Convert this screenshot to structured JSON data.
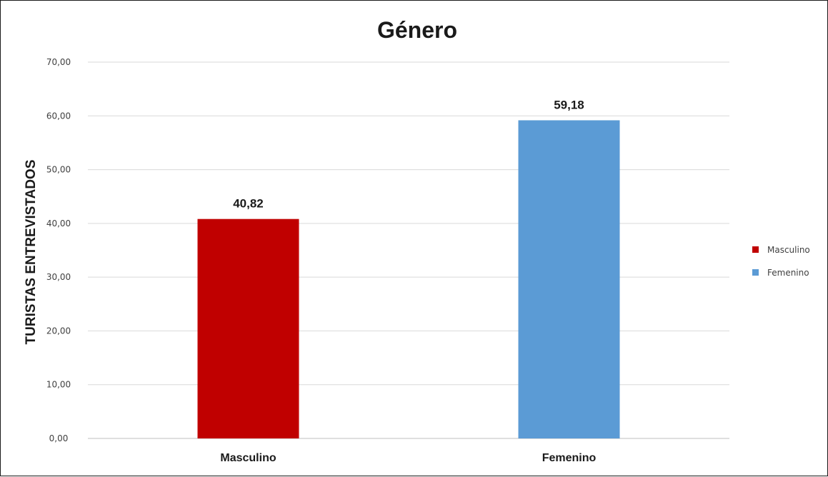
{
  "chart_data": {
    "type": "bar",
    "title": "Género",
    "ylabel": "TURISTAS ENTREVISTADOS",
    "xlabel": "",
    "categories": [
      "Masculino",
      "Femenino"
    ],
    "values": [
      40.82,
      59.18
    ],
    "value_labels": [
      "40,82",
      "59,18"
    ],
    "colors": [
      "#c00000",
      "#5b9bd5"
    ],
    "ylim": [
      0,
      70
    ],
    "yticks": [
      0,
      10,
      20,
      30,
      40,
      50,
      60,
      70
    ],
    "ytick_labels": [
      "0,00",
      "10,00",
      "20,00",
      "30,00",
      "40,00",
      "50,00",
      "60,00",
      "70,00"
    ],
    "grid": true,
    "legend": {
      "position": "right",
      "entries": [
        "Masculino",
        "Femenino"
      ]
    }
  }
}
